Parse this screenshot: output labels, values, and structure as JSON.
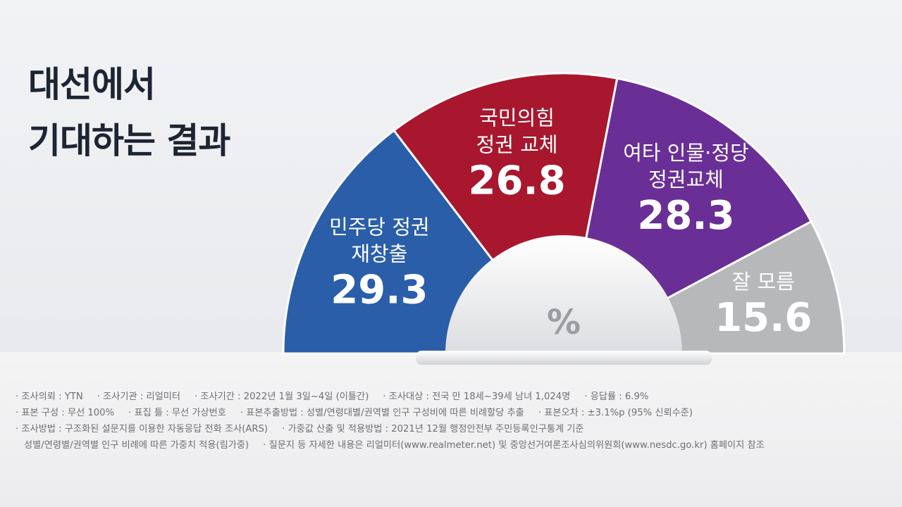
{
  "title": {
    "line1": "대선에서",
    "line2": "기대하는 결과"
  },
  "chart_data": {
    "type": "pie",
    "variant": "half-donut",
    "unit": "%",
    "slices": [
      {
        "label_lines": [
          "민주당 정권",
          "재창출"
        ],
        "value": 29.3,
        "value_text": "29.3",
        "color": "#2a5ea8"
      },
      {
        "label_lines": [
          "국민의힘",
          "정권 교체"
        ],
        "value": 26.8,
        "value_text": "26.8",
        "color": "#a8172e"
      },
      {
        "label_lines": [
          "여타 인물·정당",
          "정권교체"
        ],
        "value": 28.3,
        "value_text": "28.3",
        "color": "#6a2f96"
      },
      {
        "label_lines": [
          "잘 모름"
        ],
        "value": 15.6,
        "value_text": "15.6",
        "color": "#b7b8ba"
      }
    ]
  },
  "footnotes": {
    "rows": [
      [
        "조사의뢰 : YTN",
        "조사기관 : 리얼미터",
        "조사기간 : 2022년 1월 3일~4일 (이틀간)",
        "조사대상 : 전국 만 18세~39세 남녀 1,024명",
        "응답률 : 6.9%"
      ],
      [
        "표본 구성 : 무선 100%",
        "표집 틀 : 무선 가상번호",
        "표본추출방법 : 성별/연령대별/권역별 인구 구성비에 따른 비례할당 추출",
        "표본오차 : ±3.1%p (95% 신뢰수준)"
      ],
      [
        "조사방법 : 구조화된 설문지를 이용한 자동응답 전화 조사(ARS)",
        "가중값 산출 및 적용방법 : 2021년 12월 행정안전부 주민등록인구통계 기준"
      ],
      [
        "성별/연령별/권역별 인구 비례에 따른 가중치 적용(림가중)",
        "질문지 등 자세한 내용은 리얼미터(www.realmeter.net) 및 중앙선거여론조사심의위원회(www.nesdc.go.kr) 홈페이지 참조"
      ]
    ]
  }
}
